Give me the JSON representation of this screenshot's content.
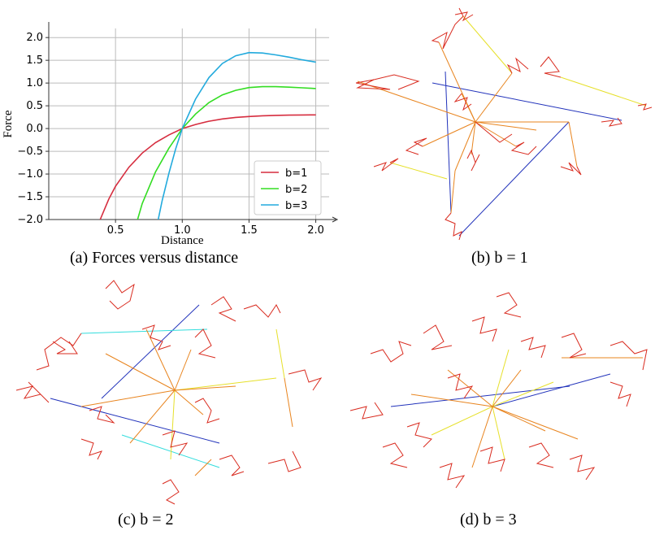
{
  "captions": {
    "a": "(a) Forces versus distance",
    "b": "(b) b = 1",
    "c": "(c) b = 2",
    "d": "(d) b = 3"
  },
  "colors": {
    "b1": "#d62d3f",
    "b2": "#33dd22",
    "b3": "#22aadd",
    "edge_red": "#d92b1f",
    "edge_orange": "#e8841e",
    "edge_yellow": "#e6e02a",
    "edge_blue": "#2233bb",
    "edge_cyan": "#33dddd"
  },
  "chart_data": {
    "type": "line",
    "title": "",
    "xlabel": "Distance",
    "ylabel": "Force",
    "xlim": [
      0,
      2.1
    ],
    "ylim": [
      -2.0,
      2.2
    ],
    "xticks": [
      "0.5",
      "1.0",
      "1.5",
      "2.0"
    ],
    "yticks": [
      "-2.0",
      "-1.5",
      "-1.0",
      "-0.5",
      "0.0",
      "0.5",
      "1.0",
      "1.5",
      "2.0"
    ],
    "grid": true,
    "legend_position": "lower-right",
    "series": [
      {
        "name": "b=1",
        "color": "#d62d3f",
        "x": [
          0.385,
          0.45,
          0.5,
          0.6,
          0.7,
          0.8,
          0.9,
          1.0,
          1.1,
          1.2,
          1.3,
          1.4,
          1.5,
          1.6,
          1.7,
          1.8,
          1.9,
          2.0
        ],
        "y": [
          -2.0,
          -1.55,
          -1.27,
          -0.85,
          -0.54,
          -0.31,
          -0.14,
          0.0,
          0.09,
          0.16,
          0.21,
          0.245,
          0.265,
          0.28,
          0.29,
          0.295,
          0.298,
          0.3
        ]
      },
      {
        "name": "b=2",
        "color": "#33dd22",
        "x": [
          0.665,
          0.7,
          0.8,
          0.9,
          1.0,
          1.1,
          1.2,
          1.3,
          1.4,
          1.5,
          1.6,
          1.7,
          1.8,
          1.9,
          2.0
        ],
        "y": [
          -2.0,
          -1.65,
          -0.95,
          -0.43,
          0.0,
          0.32,
          0.57,
          0.74,
          0.84,
          0.9,
          0.92,
          0.92,
          0.91,
          0.895,
          0.88
        ]
      },
      {
        "name": "b=3",
        "color": "#22aadd",
        "x": [
          0.82,
          0.85,
          0.9,
          0.95,
          1.0,
          1.1,
          1.2,
          1.3,
          1.4,
          1.5,
          1.6,
          1.7,
          1.8,
          1.9,
          2.0
        ],
        "y": [
          -2.0,
          -1.58,
          -0.98,
          -0.45,
          0.0,
          0.65,
          1.12,
          1.43,
          1.6,
          1.67,
          1.66,
          1.62,
          1.57,
          1.51,
          1.46
        ]
      }
    ]
  }
}
